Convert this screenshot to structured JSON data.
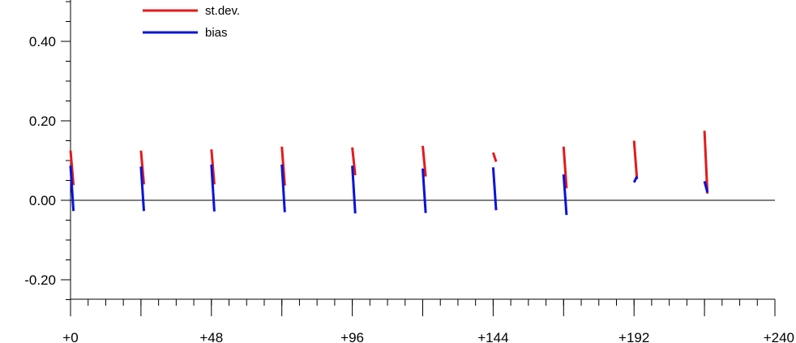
{
  "chart_data": {
    "type": "line",
    "title": "",
    "xlabel": "",
    "ylabel": "",
    "xlim": [
      0,
      240
    ],
    "ylim": [
      -0.25,
      0.5
    ],
    "x_ticks": [
      {
        "value": 0,
        "label": "+0"
      },
      {
        "value": 48,
        "label": "+48"
      },
      {
        "value": 96,
        "label": "+96"
      },
      {
        "value": 144,
        "label": "+144"
      },
      {
        "value": 192,
        "label": "+192"
      },
      {
        "value": 240,
        "label": "+240"
      }
    ],
    "x_minor_step": 6,
    "y_ticks": [
      {
        "value": 0.4,
        "label": "0.40"
      },
      {
        "value": 0.2,
        "label": "0.20"
      },
      {
        "value": 0.0,
        "label": "0.00"
      },
      {
        "value": -0.2,
        "label": "-0.20"
      }
    ],
    "y_minor_step": 0.05,
    "zero_line": true,
    "legend": {
      "placement": "top-left",
      "entries": [
        {
          "label": "st.dev.",
          "color": "#e31a1c"
        },
        {
          "label": "bias",
          "color": "#0a14d6"
        }
      ]
    },
    "segment_note": "each forecast step is drawn as a short line spanning that step",
    "series": [
      {
        "name": "st.dev.",
        "color": "#e31a1c",
        "segments": [
          {
            "x": [
              0,
              1
            ],
            "y": [
              0.125,
              0.038
            ]
          },
          {
            "x": [
              24,
              25
            ],
            "y": [
              0.125,
              0.04
            ]
          },
          {
            "x": [
              48,
              49
            ],
            "y": [
              0.128,
              0.04
            ]
          },
          {
            "x": [
              72,
              73
            ],
            "y": [
              0.135,
              0.037
            ]
          },
          {
            "x": [
              96,
              97
            ],
            "y": [
              0.133,
              0.063
            ]
          },
          {
            "x": [
              120,
              121
            ],
            "y": [
              0.137,
              0.06
            ]
          },
          {
            "x": [
              144,
              145
            ],
            "y": [
              0.12,
              0.097
            ]
          },
          {
            "x": [
              168,
              169
            ],
            "y": [
              0.135,
              0.03
            ]
          },
          {
            "x": [
              192,
              193
            ],
            "y": [
              0.15,
              0.053
            ]
          },
          {
            "x": [
              216,
              217
            ],
            "y": [
              0.175,
              0.017
            ]
          }
        ]
      },
      {
        "name": "bias",
        "color": "#0a14d6",
        "segments": [
          {
            "x": [
              0,
              1
            ],
            "y": [
              0.087,
              -0.027
            ]
          },
          {
            "x": [
              24,
              25
            ],
            "y": [
              0.085,
              -0.027
            ]
          },
          {
            "x": [
              48,
              49
            ],
            "y": [
              0.09,
              -0.028
            ]
          },
          {
            "x": [
              72,
              73
            ],
            "y": [
              0.09,
              -0.03
            ]
          },
          {
            "x": [
              96,
              97
            ],
            "y": [
              0.087,
              -0.033
            ]
          },
          {
            "x": [
              120,
              121
            ],
            "y": [
              0.08,
              -0.032
            ]
          },
          {
            "x": [
              144,
              145
            ],
            "y": [
              0.083,
              -0.025
            ]
          },
          {
            "x": [
              168,
              169
            ],
            "y": [
              0.065,
              -0.037
            ]
          },
          {
            "x": [
              192,
              193
            ],
            "y": [
              0.045,
              0.06
            ]
          },
          {
            "x": [
              216,
              217
            ],
            "y": [
              0.048,
              0.02
            ]
          }
        ]
      }
    ]
  }
}
